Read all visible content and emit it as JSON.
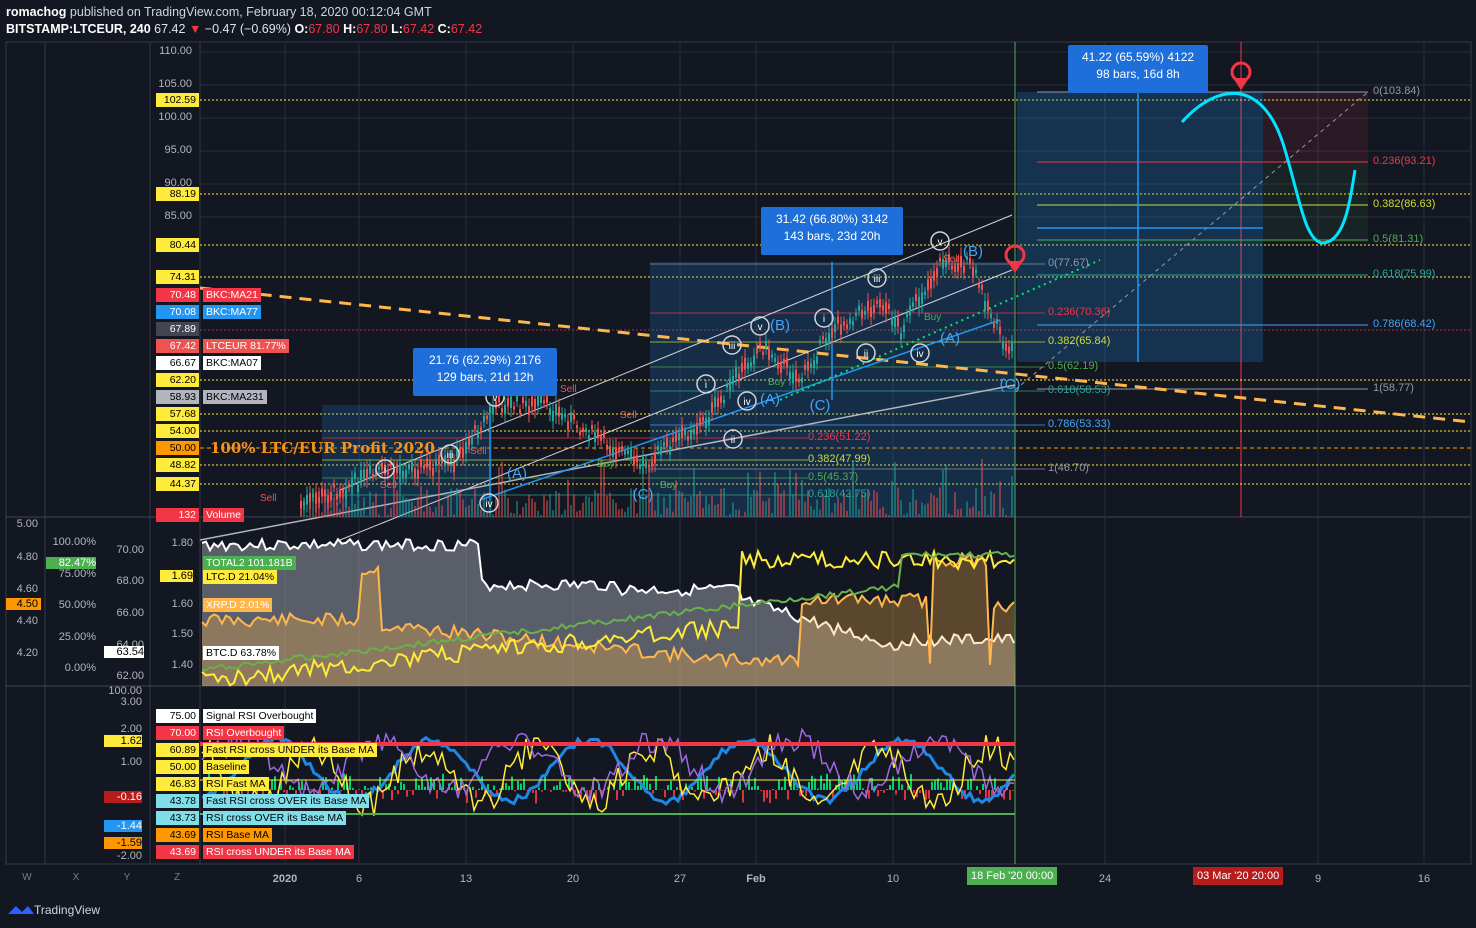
{
  "header": {
    "line1_user": "romachog",
    "line1_rest": " published on TradingView.com, February 18, 2020 00:12:04 GMT",
    "symbol": "BITSTAMP:LTCEUR, 240",
    "price": "67.42",
    "change": "−0.47 (−0.69%)",
    "o_label": "O:",
    "o": "67.80",
    "h_label": "H:",
    "h": "67.80",
    "l_label": "L:",
    "l": "67.42",
    "c_label": "C:",
    "c": "67.42"
  },
  "price_axis": [
    "110.00",
    "105.00",
    "100.00",
    "95.00",
    "90.00",
    "85.00"
  ],
  "price_tags": [
    {
      "v": "102.59",
      "bg": "#ffeb3b",
      "fg": "#000"
    },
    {
      "v": "88.19",
      "bg": "#ffeb3b",
      "fg": "#000"
    },
    {
      "v": "80.44",
      "bg": "#ffeb3b",
      "fg": "#000"
    },
    {
      "v": "74.31",
      "bg": "#ffeb3b",
      "fg": "#000"
    },
    {
      "v": "70.48",
      "bg": "#f23645",
      "fg": "#fff",
      "label": "BKC:MA21",
      "lbg": "#f23645",
      "lfg": "#fff"
    },
    {
      "v": "70.08",
      "bg": "#2196f3",
      "fg": "#fff",
      "label": "BKC:MA77",
      "lbg": "#2196f3",
      "lfg": "#fff"
    },
    {
      "v": "67.89",
      "bg": "#434651",
      "fg": "#fff"
    },
    {
      "v": "67.42",
      "bg": "#ef5350",
      "fg": "#fff",
      "label": "LTCEUR 81.77%",
      "lbg": "#ef5350",
      "lfg": "#fff"
    },
    {
      "v": "66.67",
      "bg": "#fff",
      "fg": "#000",
      "label": "BKC:MA07",
      "lbg": "#fff",
      "lfg": "#000"
    },
    {
      "v": "62.20",
      "bg": "#ffeb3b",
      "fg": "#000"
    },
    {
      "v": "58.93",
      "bg": "#b2b5be",
      "fg": "#000",
      "label": "BKC:MA231",
      "lbg": "#b2b5be",
      "lfg": "#000"
    },
    {
      "v": "57.68",
      "bg": "#ffeb3b",
      "fg": "#000"
    },
    {
      "v": "54.00",
      "bg": "#ffeb3b",
      "fg": "#000"
    },
    {
      "v": "50.00",
      "bg": "#ff9800",
      "fg": "#000"
    },
    {
      "v": "48.82",
      "bg": "#ffeb3b",
      "fg": "#000"
    },
    {
      "v": "44.37",
      "bg": "#ffeb3b",
      "fg": "#000"
    },
    {
      "v": "132",
      "bg": "#f23645",
      "fg": "#fff",
      "label": "Volume",
      "lbg": "#f23645",
      "lfg": "#fff"
    }
  ],
  "main_title": "100% LTC/EUR Profit 2020",
  "info_boxes": [
    {
      "l1": "21.76 (62.29%) 2176",
      "l2": "129 bars, 21d 12h"
    },
    {
      "l1": "31.42 (66.80%) 3142",
      "l2": "143 bars, 23d 20h"
    },
    {
      "l1": "41.22 (65.59%) 4122",
      "l2": "98 bars, 16d 8h"
    }
  ],
  "fib_right": [
    {
      "t": "0(103.84)",
      "c": "#9598a1"
    },
    {
      "t": "0.236(93.21)",
      "c": "#f23645"
    },
    {
      "t": "0.382(86.63)",
      "c": "#cddc39"
    },
    {
      "t": "0.5(81.31)",
      "c": "#4caf50"
    },
    {
      "t": "0.618(75.99)",
      "c": "#26a69a"
    },
    {
      "t": "0.786(68.42)",
      "c": "#42a5f5"
    },
    {
      "t": "1(58.77)",
      "c": "#9598a1"
    }
  ],
  "fib_mid": [
    {
      "t": "0(77.67)",
      "c": "#9598a1"
    },
    {
      "t": "0.236(70.36)",
      "c": "#f23645"
    },
    {
      "t": "0.382(65.84)",
      "c": "#cddc39"
    },
    {
      "t": "0.5(62.19)",
      "c": "#4caf50"
    },
    {
      "t": "0.618(58.53)",
      "c": "#26a69a"
    },
    {
      "t": "0.786(53.33)",
      "c": "#42a5f5"
    },
    {
      "t": "1(46.70)",
      "c": "#9598a1"
    }
  ],
  "fib_left": [
    {
      "t": "0.236(51.22)",
      "c": "#f23645"
    },
    {
      "t": "0.382(47.99)",
      "c": "#cddc39"
    },
    {
      "t": "0.5(45.37)",
      "c": "#4caf50"
    },
    {
      "t": "0.618(42.75)",
      "c": "#26a69a"
    }
  ],
  "wave_labels": [
    "i",
    "iii",
    "v",
    "iv",
    "ii",
    "(A)",
    "(B)",
    "(C)"
  ],
  "chart_texts": {
    "sell": "Sell",
    "buy": "Buy",
    "c_a": "(A)",
    "c_b": "(B)",
    "c_c": "(C)"
  },
  "pane2_axis_left": [
    "5.00",
    "4.80",
    "4.60",
    "4.50",
    "4.40",
    "4.20"
  ],
  "pane2_axis_pct": [
    "100.00%",
    "82.47%",
    "75.00%",
    "50.00%",
    "25.00%",
    "0.00%"
  ],
  "pane2_axis_mid": [
    "70.00",
    "68.00",
    "66.00",
    "64.00",
    "63.54",
    "62.00"
  ],
  "pane2_axis_right": [
    "1.80",
    "1.69",
    "1.60",
    "1.50",
    "1.40"
  ],
  "pane2_labels": [
    {
      "t": "TOTAL2 101.181B",
      "bg": "#4caf50",
      "fg": "#fff"
    },
    {
      "t": "LTC.D 21.04%",
      "bg": "#ffeb3b",
      "fg": "#000"
    },
    {
      "t": "XRP.D 2.01%",
      "bg": "#ffb74d",
      "fg": "#fff"
    },
    {
      "t": "BTC.D 63.78%",
      "bg": "#fff",
      "fg": "#000"
    }
  ],
  "pane3_axis": [
    "100.00",
    "3.00",
    "2.00",
    "1.62",
    "1.00",
    "-0.16",
    "-1.44",
    "-1.59",
    "-2.00"
  ],
  "pane3_labels": [
    {
      "v": "75.00",
      "t": "Signal RSI Overbought",
      "bg": "#fff",
      "fg": "#000"
    },
    {
      "v": "70.00",
      "t": "RSI Overbought",
      "bg": "#f23645",
      "fg": "#fff"
    },
    {
      "v": "60.89",
      "t": "Fast RSI cross UNDER its Base MA",
      "bg": "#ffeb3b",
      "fg": "#000"
    },
    {
      "v": "50.00",
      "t": "Baseline",
      "bg": "#ffeb3b",
      "fg": "#000"
    },
    {
      "v": "46.83",
      "t": "RSI Fast MA",
      "bg": "#ffeb3b",
      "fg": "#000"
    },
    {
      "v": "43.78",
      "t": "Fast RSI cross OVER its Base MA",
      "bg": "#80deea",
      "fg": "#000"
    },
    {
      "v": "43.73",
      "t": "RSI cross OVER its Base MA",
      "bg": "#80deea",
      "fg": "#000"
    },
    {
      "v": "43.69",
      "t": "RSI Base MA",
      "bg": "#ff9800",
      "fg": "#000"
    },
    {
      "v": "43.69",
      "t": "RSI cross UNDER its Base MA",
      "bg": "#f23645",
      "fg": "#fff"
    }
  ],
  "time_axis": [
    "2020",
    "6",
    "13",
    "20",
    "27",
    "Feb",
    "10",
    "24",
    "9",
    "16"
  ],
  "time_badge_1": "18 Feb '20   00:00",
  "time_badge_2": "03 Mar '20   20:00",
  "corner_buttons": [
    "W",
    "X",
    "Y",
    "Z"
  ],
  "footer": "TradingView",
  "colors": {
    "bg": "#131722",
    "up": "#26a69a",
    "down": "#ef5350",
    "accent": "#2196f3"
  }
}
